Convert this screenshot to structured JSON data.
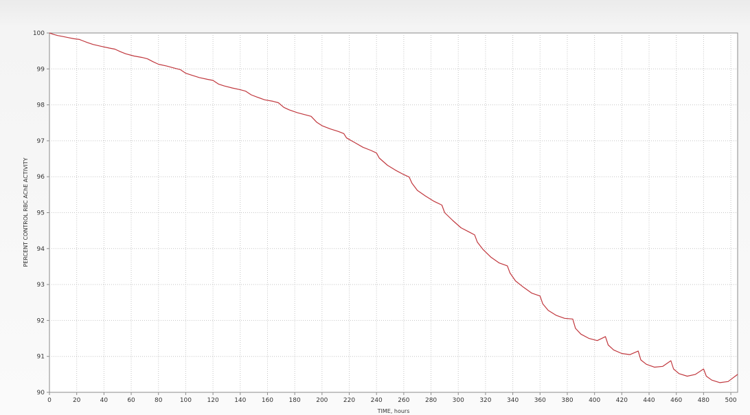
{
  "chart_data": {
    "type": "line",
    "title": "",
    "xlabel": "TIME, hours",
    "ylabel": "PERCENT CONTROL RBC AChE ACTIVITY",
    "xlim": [
      0,
      505
    ],
    "ylim": [
      90,
      100
    ],
    "xticks": [
      0,
      20,
      40,
      60,
      80,
      100,
      120,
      140,
      160,
      180,
      200,
      220,
      240,
      260,
      280,
      300,
      320,
      340,
      360,
      380,
      400,
      420,
      440,
      460,
      480,
      500
    ],
    "yticks": [
      90,
      91,
      92,
      93,
      94,
      95,
      96,
      97,
      98,
      99,
      100
    ],
    "grid": true,
    "legend": "none",
    "series": [
      {
        "color": "#c0363c",
        "points": [
          [
            0,
            100.0
          ],
          [
            3,
            99.96
          ],
          [
            6,
            99.93
          ],
          [
            10,
            99.9
          ],
          [
            14,
            99.87
          ],
          [
            18,
            99.84
          ],
          [
            22,
            99.82
          ],
          [
            24,
            99.79
          ],
          [
            28,
            99.73
          ],
          [
            32,
            99.68
          ],
          [
            38,
            99.63
          ],
          [
            44,
            99.58
          ],
          [
            48,
            99.55
          ],
          [
            52,
            99.48
          ],
          [
            56,
            99.42
          ],
          [
            62,
            99.36
          ],
          [
            68,
            99.32
          ],
          [
            72,
            99.28
          ],
          [
            76,
            99.2
          ],
          [
            80,
            99.13
          ],
          [
            86,
            99.08
          ],
          [
            92,
            99.02
          ],
          [
            96,
            98.98
          ],
          [
            100,
            98.88
          ],
          [
            104,
            98.83
          ],
          [
            110,
            98.76
          ],
          [
            116,
            98.71
          ],
          [
            120,
            98.68
          ],
          [
            124,
            98.58
          ],
          [
            128,
            98.53
          ],
          [
            134,
            98.47
          ],
          [
            140,
            98.42
          ],
          [
            144,
            98.38
          ],
          [
            148,
            98.28
          ],
          [
            152,
            98.22
          ],
          [
            158,
            98.14
          ],
          [
            164,
            98.1
          ],
          [
            168,
            98.06
          ],
          [
            172,
            97.93
          ],
          [
            176,
            97.86
          ],
          [
            182,
            97.78
          ],
          [
            188,
            97.72
          ],
          [
            192,
            97.68
          ],
          [
            196,
            97.52
          ],
          [
            200,
            97.42
          ],
          [
            206,
            97.33
          ],
          [
            212,
            97.26
          ],
          [
            216,
            97.2
          ],
          [
            218,
            97.08
          ],
          [
            224,
            96.95
          ],
          [
            230,
            96.82
          ],
          [
            236,
            96.73
          ],
          [
            240,
            96.66
          ],
          [
            242,
            96.52
          ],
          [
            248,
            96.32
          ],
          [
            254,
            96.18
          ],
          [
            260,
            96.06
          ],
          [
            264,
            95.99
          ],
          [
            266,
            95.82
          ],
          [
            270,
            95.62
          ],
          [
            276,
            95.46
          ],
          [
            282,
            95.32
          ],
          [
            288,
            95.21
          ],
          [
            290,
            95.0
          ],
          [
            296,
            94.78
          ],
          [
            302,
            94.58
          ],
          [
            308,
            94.46
          ],
          [
            312,
            94.38
          ],
          [
            314,
            94.18
          ],
          [
            318,
            93.98
          ],
          [
            324,
            93.76
          ],
          [
            330,
            93.6
          ],
          [
            336,
            93.52
          ],
          [
            338,
            93.32
          ],
          [
            342,
            93.1
          ],
          [
            348,
            92.92
          ],
          [
            354,
            92.76
          ],
          [
            360,
            92.68
          ],
          [
            362,
            92.46
          ],
          [
            366,
            92.28
          ],
          [
            372,
            92.14
          ],
          [
            378,
            92.06
          ],
          [
            384,
            92.04
          ],
          [
            386,
            91.78
          ],
          [
            390,
            91.62
          ],
          [
            396,
            91.5
          ],
          [
            402,
            91.44
          ],
          [
            408,
            91.55
          ],
          [
            410,
            91.32
          ],
          [
            414,
            91.18
          ],
          [
            420,
            91.08
          ],
          [
            426,
            91.05
          ],
          [
            432,
            91.15
          ],
          [
            434,
            90.9
          ],
          [
            438,
            90.78
          ],
          [
            444,
            90.7
          ],
          [
            450,
            90.72
          ],
          [
            456,
            90.88
          ],
          [
            458,
            90.65
          ],
          [
            462,
            90.52
          ],
          [
            468,
            90.45
          ],
          [
            474,
            90.5
          ],
          [
            480,
            90.65
          ],
          [
            482,
            90.45
          ],
          [
            486,
            90.34
          ],
          [
            492,
            90.27
          ],
          [
            498,
            90.3
          ],
          [
            505,
            90.5
          ]
        ]
      }
    ]
  }
}
